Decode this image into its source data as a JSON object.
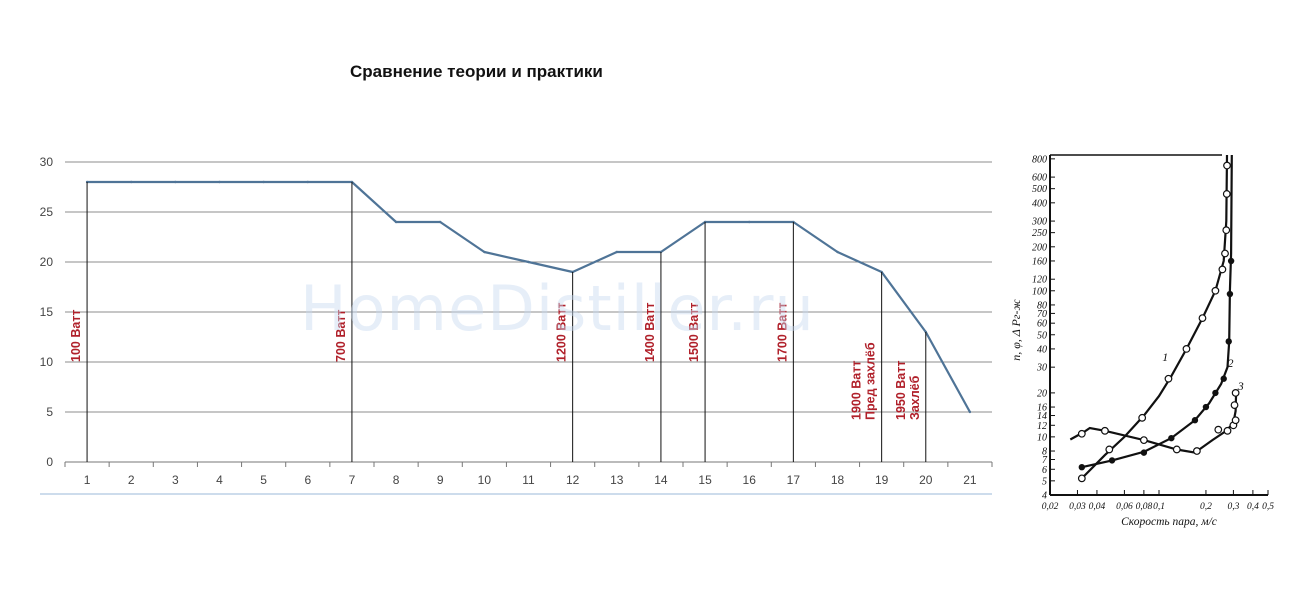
{
  "chart_data": [
    {
      "type": "line",
      "title": "Сравнение теории и практики",
      "x": [
        1,
        2,
        3,
        4,
        5,
        6,
        7,
        8,
        9,
        10,
        11,
        12,
        13,
        14,
        15,
        16,
        17,
        18,
        19,
        20,
        21
      ],
      "series": [
        {
          "values": [
            28,
            28,
            28,
            28,
            28,
            28,
            28,
            24,
            24,
            21,
            20,
            19,
            21,
            21,
            24,
            24,
            24,
            21,
            19,
            13,
            5
          ]
        }
      ],
      "ylim": [
        0,
        30
      ],
      "yticks": [
        0,
        5,
        10,
        15,
        20,
        25,
        30
      ],
      "grid": true,
      "annotations": [
        {
          "x": 1,
          "lines": [
            "100 Ватт"
          ]
        },
        {
          "x": 7,
          "lines": [
            "700 Ватт"
          ]
        },
        {
          "x": 12,
          "lines": [
            "1200 Ватт"
          ]
        },
        {
          "x": 14,
          "lines": [
            "1400 Ватт"
          ]
        },
        {
          "x": 15,
          "lines": [
            "1500 Ватт"
          ]
        },
        {
          "x": 17,
          "lines": [
            "1700 Ватт"
          ]
        },
        {
          "x": 19,
          "lines": [
            "1900 Ватт",
            "Пред захлёб"
          ]
        },
        {
          "x": 20,
          "lines": [
            "1950 Ватт",
            "Захлёб"
          ]
        }
      ],
      "colors": {
        "line": "#4f7497",
        "annotation": "#b0202a",
        "grid": "#8c8c8c"
      }
    },
    {
      "type": "line",
      "xlabel": "Скорость пара, м/с",
      "ylabel": "n, φ, Δ Pг-ж",
      "xscale": "log",
      "yscale": "log",
      "xticks": [
        0.02,
        0.03,
        0.04,
        0.06,
        0.08,
        0.1,
        0.2,
        0.3,
        0.4,
        0.5
      ],
      "xtick_labels": [
        "0,02",
        "0,03",
        "0,04",
        "0,06",
        "0,08",
        "0,1",
        "0,2",
        "0,3",
        "0,4",
        "0,5"
      ],
      "yticks": [
        4,
        5,
        6,
        7,
        8,
        10,
        12,
        14,
        16,
        20,
        30,
        40,
        50,
        60,
        70,
        80,
        100,
        120,
        160,
        200,
        250,
        300,
        400,
        500,
        600,
        800
      ],
      "ylim": [
        4,
        850
      ],
      "xlim": [
        0.02,
        0.5
      ],
      "series": [
        {
          "name": "1",
          "marker": "open-circle",
          "points": [
            [
              0.032,
              5.2
            ],
            [
              0.048,
              8.2
            ],
            [
              0.078,
              13.5
            ],
            [
              0.115,
              25
            ],
            [
              0.15,
              40
            ],
            [
              0.19,
              65
            ],
            [
              0.23,
              100
            ],
            [
              0.255,
              140
            ],
            [
              0.265,
              180
            ],
            [
              0.27,
              260
            ],
            [
              0.272,
              460
            ],
            [
              0.273,
              720
            ]
          ],
          "curve": [
            [
              0.032,
              5.2
            ],
            [
              0.045,
              7.5
            ],
            [
              0.06,
              10
            ],
            [
              0.08,
              14
            ],
            [
              0.1,
              19
            ],
            [
              0.12,
              26
            ],
            [
              0.15,
              40
            ],
            [
              0.19,
              65
            ],
            [
              0.23,
              100
            ],
            [
              0.26,
              160
            ],
            [
              0.27,
              300
            ],
            [
              0.273,
              850
            ]
          ]
        },
        {
          "name": "2",
          "marker": "filled-circle",
          "points": [
            [
              0.032,
              6.2
            ],
            [
              0.05,
              6.9
            ],
            [
              0.08,
              7.8
            ],
            [
              0.12,
              9.8
            ],
            [
              0.17,
              13
            ],
            [
              0.2,
              16
            ],
            [
              0.23,
              20
            ],
            [
              0.26,
              25
            ],
            [
              0.28,
              45
            ],
            [
              0.285,
              95
            ],
            [
              0.29,
              160
            ]
          ],
          "curve": [
            [
              0.032,
              6.2
            ],
            [
              0.05,
              6.9
            ],
            [
              0.08,
              7.9
            ],
            [
              0.12,
              9.8
            ],
            [
              0.17,
              13
            ],
            [
              0.21,
              17
            ],
            [
              0.25,
              23
            ],
            [
              0.275,
              30
            ],
            [
              0.282,
              45
            ],
            [
              0.285,
              100
            ],
            [
              0.29,
              180
            ],
            [
              0.293,
              850
            ]
          ]
        },
        {
          "name": "3",
          "marker": "open-circle",
          "points": [
            [
              0.032,
              10.5
            ],
            [
              0.045,
              11
            ],
            [
              0.08,
              9.5
            ],
            [
              0.13,
              8.2
            ],
            [
              0.175,
              8
            ],
            [
              0.24,
              11.2
            ],
            [
              0.275,
              11
            ],
            [
              0.3,
              12
            ],
            [
              0.31,
              13
            ],
            [
              0.305,
              16.5
            ],
            [
              0.31,
              20
            ]
          ],
          "curve": [
            [
              0.027,
              9.6
            ],
            [
              0.033,
              10.8
            ],
            [
              0.036,
              11.5
            ],
            [
              0.045,
              11
            ],
            [
              0.08,
              9.5
            ],
            [
              0.13,
              8.2
            ],
            [
              0.17,
              7.8
            ],
            [
              0.22,
              9.5
            ],
            [
              0.27,
              11
            ],
            [
              0.3,
              12.5
            ],
            [
              0.31,
              15
            ],
            [
              0.312,
              20
            ]
          ]
        }
      ]
    }
  ],
  "watermark": "HomeDistiller.ru"
}
